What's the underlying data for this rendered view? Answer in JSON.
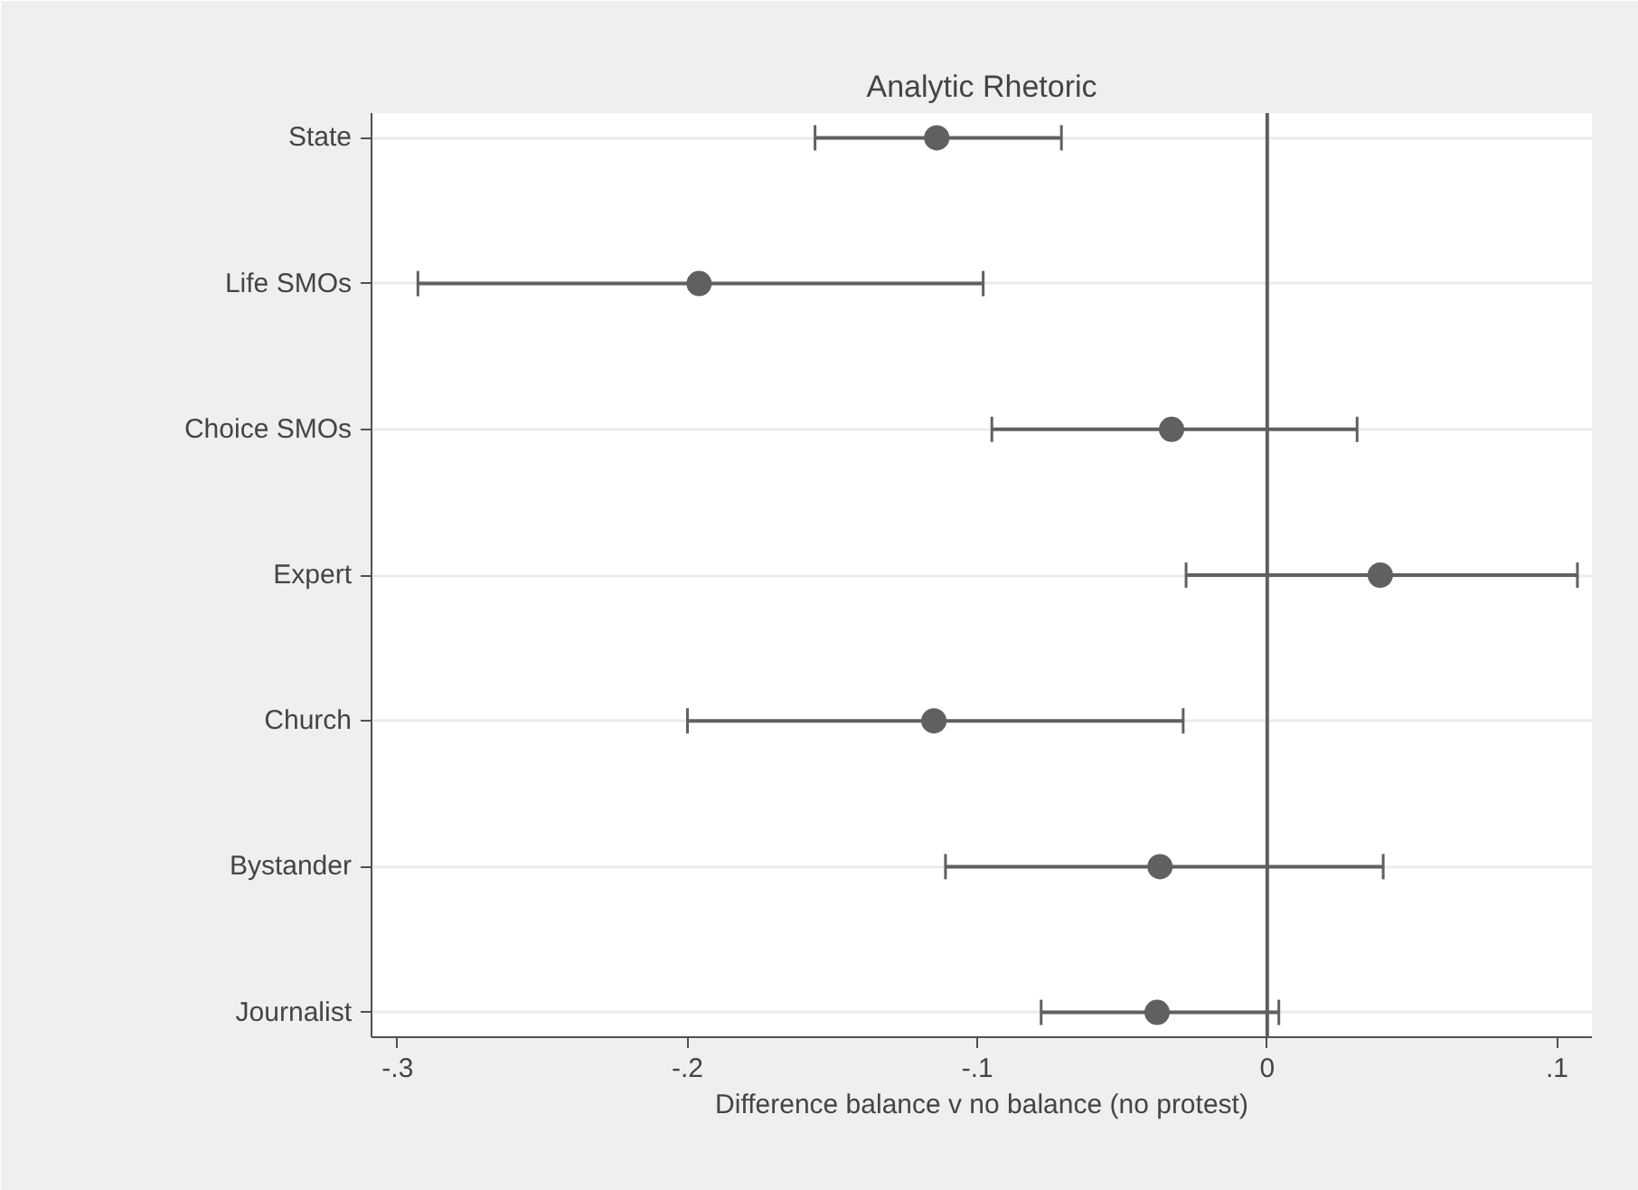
{
  "chart_data": {
    "type": "scatter",
    "title": "Analytic Rhetoric",
    "xlabel": "Difference balance v no balance (no protest)",
    "categories": [
      "State",
      "Life SMOs",
      "Choice SMOs",
      "Expert",
      "Church",
      "Bystander",
      "Journalist"
    ],
    "orientation": "horizontal",
    "values": [
      -0.114,
      -0.196,
      -0.033,
      0.039,
      -0.115,
      -0.037,
      -0.038
    ],
    "errors": [
      [
        -0.156,
        -0.071
      ],
      [
        -0.293,
        -0.098
      ],
      [
        -0.095,
        0.031
      ],
      [
        -0.028,
        0.107
      ],
      [
        -0.2,
        -0.029
      ],
      [
        -0.111,
        0.04
      ],
      [
        -0.078,
        0.004
      ]
    ],
    "color": "#606060",
    "marker": "circle",
    "grid": "y",
    "xlim": [
      -0.309,
      0.112
    ],
    "xticks": [
      {
        "value": -0.3,
        "label": "-.3"
      },
      {
        "value": -0.2,
        "label": "-.2"
      },
      {
        "value": -0.1,
        "label": "-.1"
      },
      0,
      {
        "value": 0.1,
        "label": ".1"
      }
    ],
    "ref_lines": [
      {
        "axis": "x",
        "value": 0,
        "color": "#606060"
      }
    ]
  }
}
